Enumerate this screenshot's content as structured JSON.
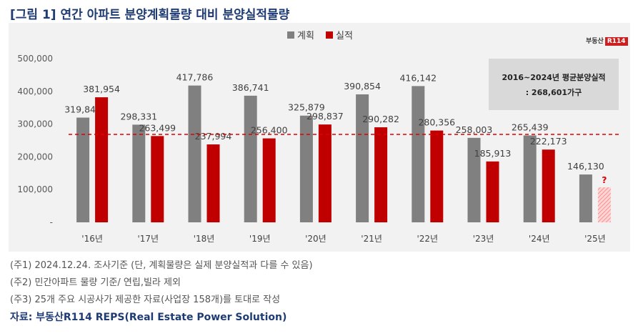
{
  "title": "[그림 1] 연간 아파트 분양계획물량 대비 분양실적물량",
  "logo": {
    "text": "부동산",
    "badge": "R114"
  },
  "chart_data": {
    "type": "bar",
    "categories": [
      "'16년",
      "'17년",
      "'18년",
      "'19년",
      "'20년",
      "'21년",
      "'22년",
      "'23년",
      "'24년",
      "'25년"
    ],
    "series": [
      {
        "name": "계획",
        "color": "#808080",
        "values": [
          319845,
          298331,
          417786,
          386741,
          325879,
          390854,
          416142,
          258003,
          265439,
          146130
        ],
        "labels": [
          "319,845",
          "298,331",
          "417,786",
          "386,741",
          "325,879",
          "390,854",
          "416,142",
          "258,003",
          "265,439",
          "146,130"
        ]
      },
      {
        "name": "실적",
        "color": "#c00000",
        "values": [
          381954,
          263499,
          237994,
          256400,
          298837,
          290282,
          280356,
          185913,
          222173,
          null
        ],
        "labels": [
          "381,954",
          "263,499",
          "237,994",
          "256,400",
          "298,837",
          "290,282",
          "280,356",
          "185,913",
          "222,173",
          "?"
        ]
      }
    ],
    "ylim": [
      0,
      500000
    ],
    "yticks": [
      0,
      100000,
      200000,
      300000,
      400000,
      500000
    ],
    "ytick_labels": [
      "-",
      "100,000",
      "200,000",
      "300,000",
      "400,000",
      "500,000"
    ],
    "reference_line": {
      "value": 268601,
      "color": "#e00000",
      "style": "dashed"
    },
    "annotation": {
      "line1": "2016~2024년 평균분양실적",
      "line2": ": 268,601가구"
    },
    "legend_position": "top-center",
    "estimated_2025_placeholder": {
      "value": 107000,
      "color": "#ff9999"
    },
    "grid": false
  },
  "footnotes": [
    "(주1) 2024.12.24. 조사기준 (단, 계획물량은 실제 분양실적과 다를 수 있음)",
    "(주2) 민간아파트 물량 기준/ 연립,빌라 제외",
    "(주3) 25개 주요 시공사가 제공한 자료(사업장 158개)를 토대로 작성"
  ],
  "source": "자료: 부동산R114 REPS(Real Estate Power Solution)"
}
